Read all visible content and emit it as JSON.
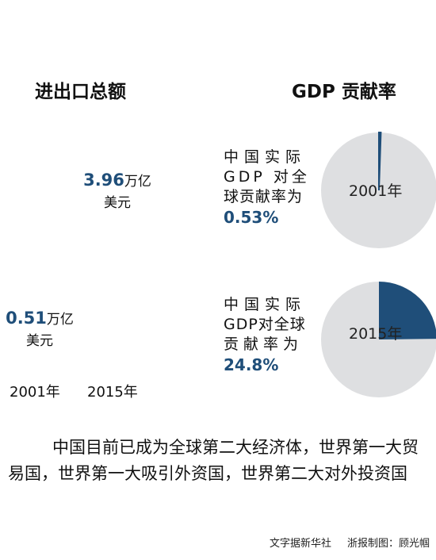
{
  "headings": {
    "trade_total": "进出口总额",
    "gdp_contribution": "GDP 贡献率"
  },
  "trade": {
    "v2015_number": "3.96",
    "v2015_unit": "万亿",
    "v2015_currency": "美元",
    "v2001_number": "0.51",
    "v2001_unit": "万亿",
    "v2001_currency": "美元",
    "year_2001": "2001年",
    "year_2015": "2015年"
  },
  "pies": {
    "p2001": {
      "year": "2001年",
      "desc_line1": "中国实际",
      "desc_line2": "GDP 对全",
      "desc_line3": "球贡献率为",
      "percent": "0.53%"
    },
    "p2015": {
      "year": "2015年",
      "desc_line1": "中国实际",
      "desc_line2": "GDP对全球",
      "desc_line3": "贡献率为",
      "percent": "24.8%"
    }
  },
  "summary": "中国目前已成为全球第二大经济体，世界第一大贸易国，世界第一大吸引外资国，世界第二大对外投资国",
  "credits": {
    "source": "文字据新华社",
    "author": "浙报制图：顾光帼"
  },
  "colors": {
    "accent": "#1f4e79",
    "pie_background": "#dedfe1"
  },
  "chart_data": [
    {
      "type": "pie",
      "title": "GDP 贡献率",
      "label": "2001年",
      "slices": [
        {
          "label": "中国",
          "value": 0.53
        },
        {
          "label": "",
          "value": 99.47
        }
      ]
    },
    {
      "type": "pie",
      "title": "GDP 贡献率",
      "label": "2015年",
      "slices": [
        {
          "label": "中国",
          "value": 24.8
        },
        {
          "label": "",
          "value": 75.2
        }
      ]
    },
    {
      "type": "bar",
      "title": "进出口总额",
      "categories": [
        "2001年",
        "2015年"
      ],
      "values": [
        0.51,
        3.96
      ],
      "unit": "万亿美元"
    }
  ]
}
